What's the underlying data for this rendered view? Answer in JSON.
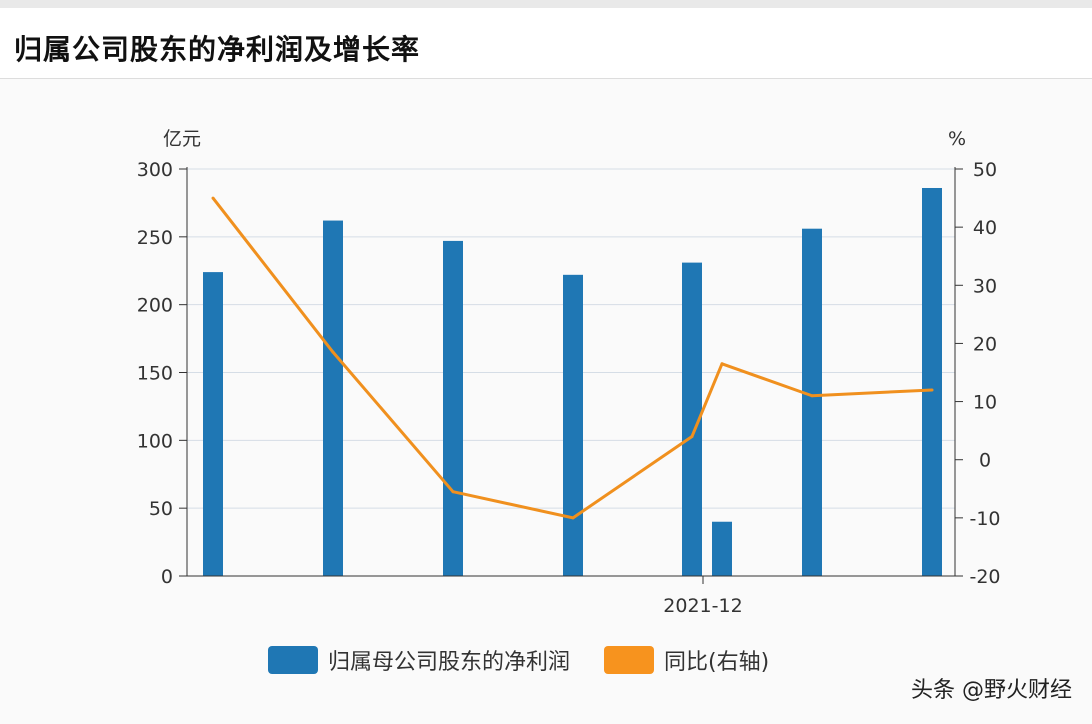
{
  "title": "归属公司股东的净利润及增长率",
  "chart_data": {
    "type": "bar",
    "title": "归属公司股东的净利润及增长率",
    "left_axis_label": "亿元",
    "right_axis_label": "%",
    "left_ylim": [
      0,
      300
    ],
    "left_ticks": [
      0,
      50,
      100,
      150,
      200,
      250,
      300
    ],
    "right_ylim": [
      -20,
      50
    ],
    "right_ticks": [
      -20,
      -10,
      0,
      10,
      20,
      30,
      40,
      50
    ],
    "x_tick_label": "2021-12",
    "series": [
      {
        "name": "归属母公司股东的净利润",
        "type": "bar",
        "color": "#1f77b4",
        "values": [
          224,
          262,
          247,
          222,
          231,
          40,
          256,
          286
        ]
      },
      {
        "name": "同比(右轴)",
        "type": "line",
        "color": "#f0901e",
        "values": [
          45,
          18.5,
          -5.5,
          -10,
          4,
          16.5,
          11,
          12
        ]
      }
    ],
    "grid": true,
    "legend_position": "bottom"
  },
  "watermark": "头条 @野火财经"
}
